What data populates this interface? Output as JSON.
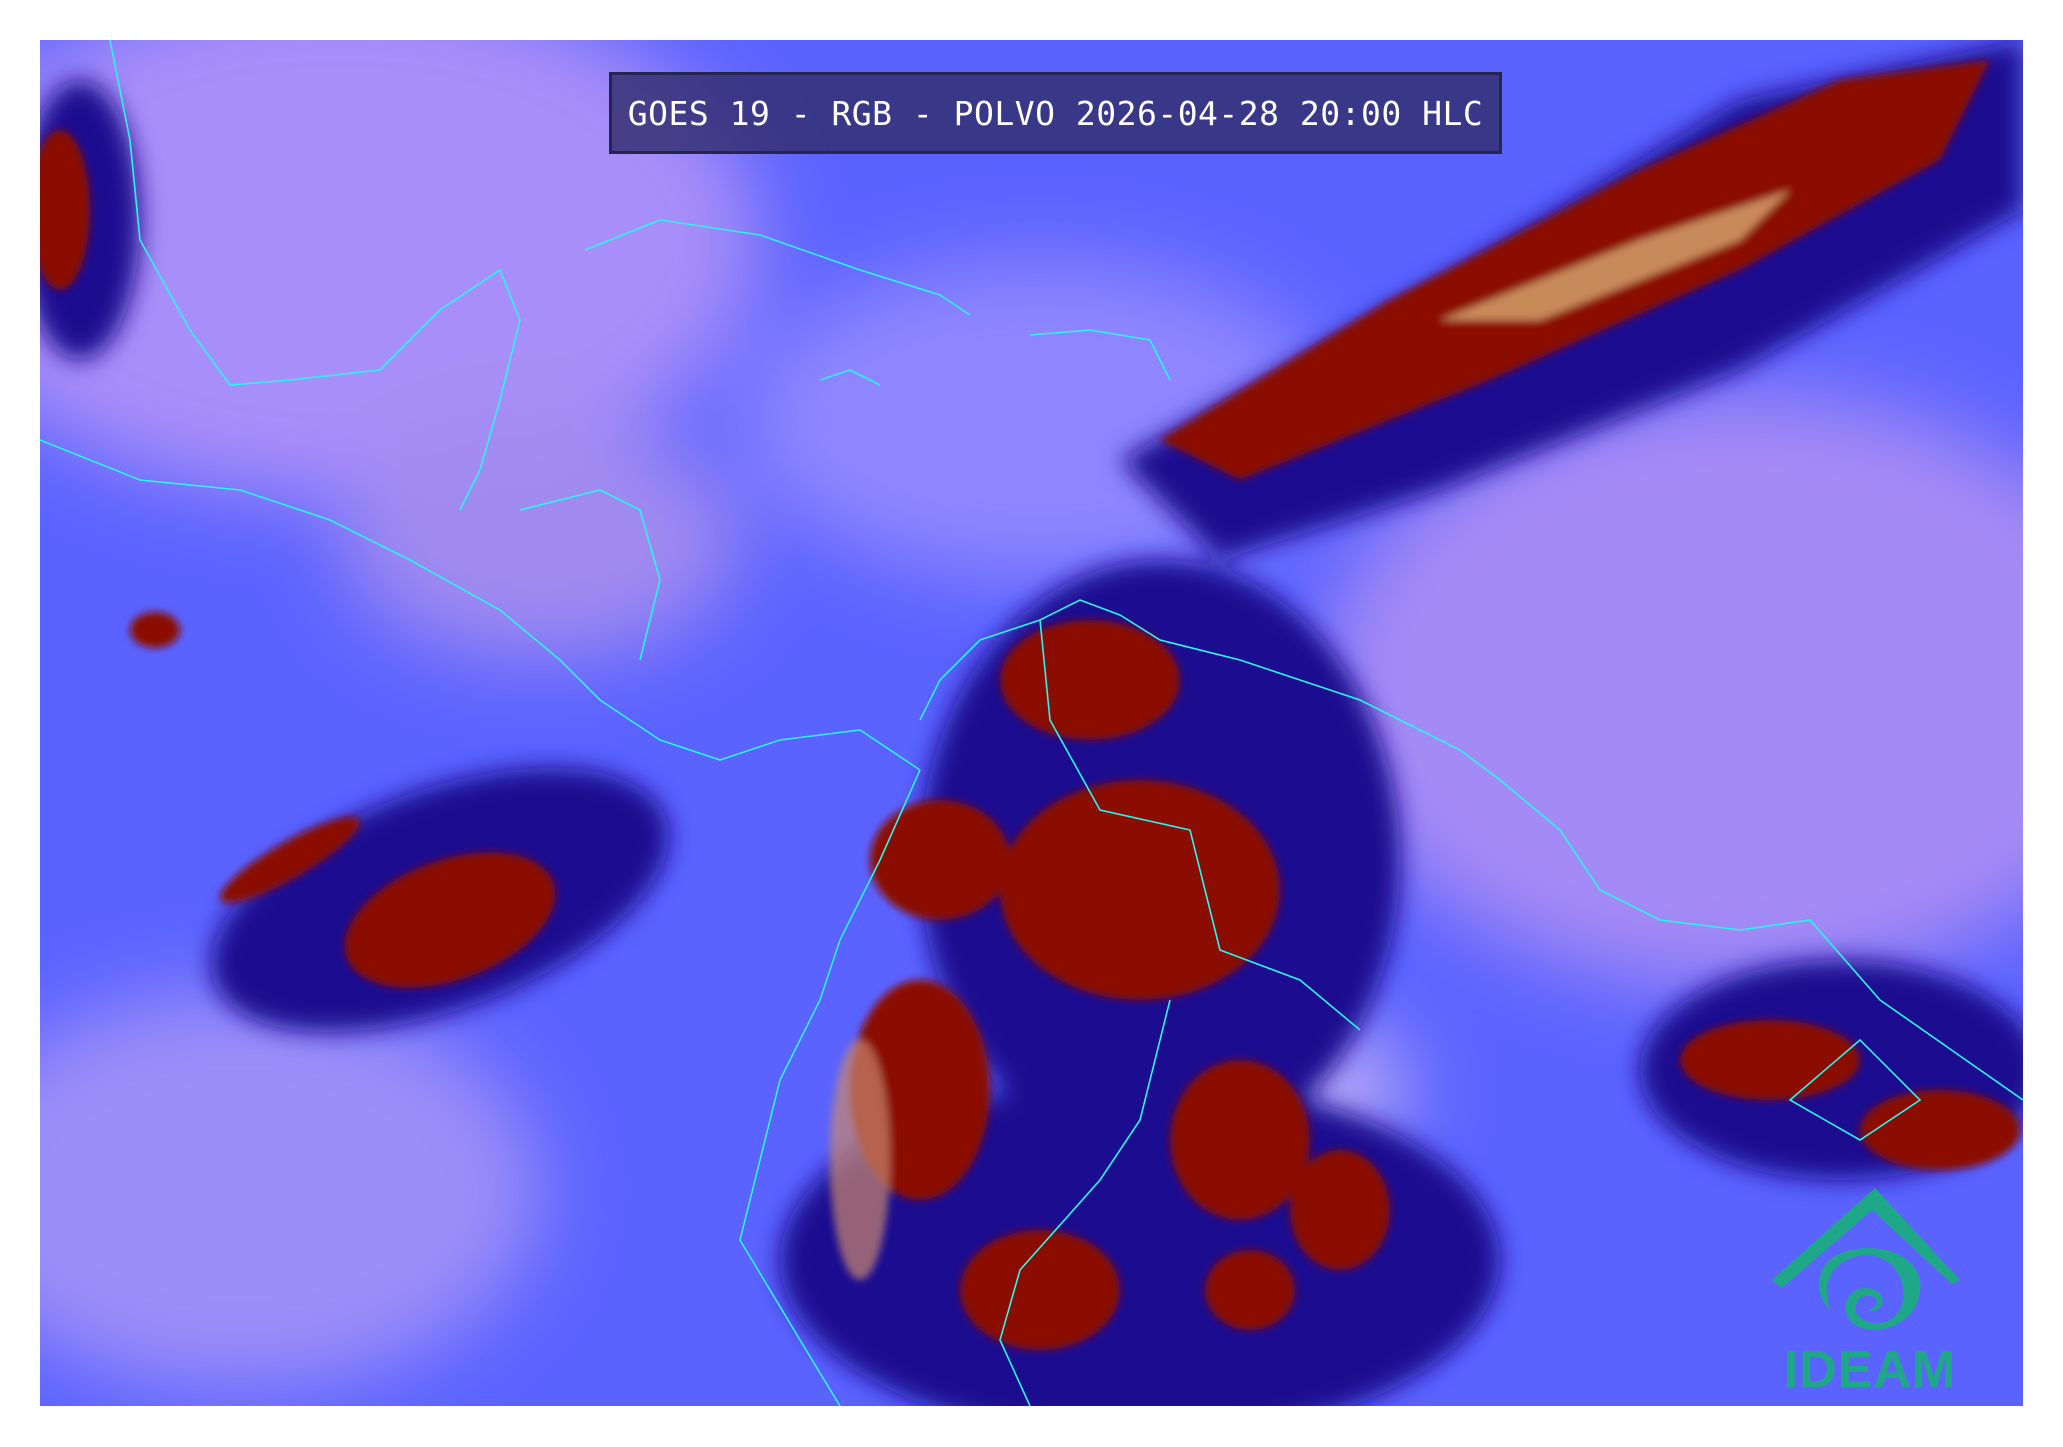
{
  "title": "GOES 19 - RGB - POLVO 2026-04-28 20:00 HLC",
  "logo": {
    "text": "IDEAM",
    "color": "#1fa888"
  },
  "colors": {
    "background": "#5b63ff",
    "clear_sky": "#a68cf5",
    "deep_cloud": "#8b0a05",
    "cloud_edge": "#1a0a6a",
    "dust_haze": "#c9886e",
    "coastline": "#2af5f0"
  }
}
